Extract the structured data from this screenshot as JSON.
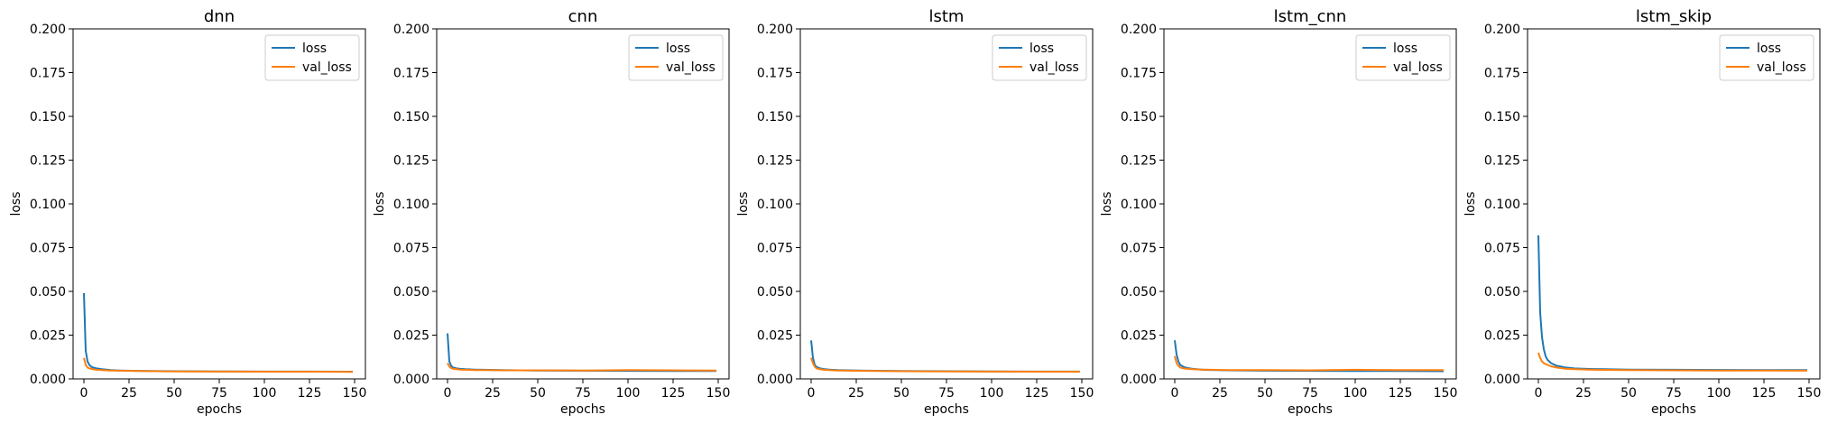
{
  "chart_data": [
    {
      "type": "line",
      "title": "dnn",
      "xlabel": "epochs",
      "ylabel": "loss",
      "xlim": [
        -6,
        156
      ],
      "ylim": [
        0,
        0.2
      ],
      "xticks": [
        "0",
        "25",
        "50",
        "75",
        "100",
        "125",
        "150"
      ],
      "yticks": [
        "0.000",
        "0.025",
        "0.050",
        "0.075",
        "0.100",
        "0.125",
        "0.150",
        "0.175",
        "0.200"
      ],
      "legend_position": "top-right",
      "grid": false,
      "series": [
        {
          "name": "loss",
          "color": "#1f77b4",
          "x": [
            0,
            1,
            2,
            3,
            4,
            5,
            7,
            10,
            15,
            20,
            30,
            50,
            75,
            100,
            125,
            149
          ],
          "y": [
            0.049,
            0.016,
            0.01,
            0.008,
            0.007,
            0.0065,
            0.006,
            0.0055,
            0.005,
            0.0048,
            0.0046,
            0.0044,
            0.0043,
            0.0042,
            0.0042,
            0.0041
          ]
        },
        {
          "name": "val_loss",
          "color": "#ff7f0e",
          "x": [
            0,
            1,
            2,
            3,
            5,
            7,
            10,
            15,
            20,
            30,
            50,
            75,
            100,
            125,
            149
          ],
          "y": [
            0.012,
            0.008,
            0.0065,
            0.006,
            0.0055,
            0.0052,
            0.005,
            0.0048,
            0.0047,
            0.0045,
            0.0043,
            0.0042,
            0.0041,
            0.0041,
            0.004
          ]
        }
      ]
    },
    {
      "type": "line",
      "title": "cnn",
      "xlabel": "epochs",
      "ylabel": "loss",
      "xlim": [
        -6,
        156
      ],
      "ylim": [
        0,
        0.2
      ],
      "xticks": [
        "0",
        "25",
        "50",
        "75",
        "100",
        "125",
        "150"
      ],
      "yticks": [
        "0.000",
        "0.025",
        "0.050",
        "0.075",
        "0.100",
        "0.125",
        "0.150",
        "0.175",
        "0.200"
      ],
      "legend_position": "top-right",
      "grid": false,
      "series": [
        {
          "name": "loss",
          "color": "#1f77b4",
          "x": [
            0,
            1,
            2,
            3,
            5,
            7,
            10,
            15,
            20,
            30,
            50,
            75,
            100,
            125,
            149
          ],
          "y": [
            0.026,
            0.01,
            0.0075,
            0.0065,
            0.006,
            0.0057,
            0.0055,
            0.0053,
            0.0052,
            0.005,
            0.0048,
            0.0047,
            0.0046,
            0.0045,
            0.0045
          ]
        },
        {
          "name": "val_loss",
          "color": "#ff7f0e",
          "x": [
            0,
            1,
            2,
            3,
            5,
            7,
            10,
            15,
            20,
            30,
            50,
            75,
            100,
            125,
            149
          ],
          "y": [
            0.009,
            0.007,
            0.0062,
            0.0058,
            0.0055,
            0.0053,
            0.0052,
            0.005,
            0.005,
            0.0049,
            0.0049,
            0.0048,
            0.005,
            0.0049,
            0.0048
          ]
        }
      ]
    },
    {
      "type": "line",
      "title": "lstm",
      "xlabel": "epochs",
      "ylabel": "loss",
      "xlim": [
        -6,
        156
      ],
      "ylim": [
        0,
        0.2
      ],
      "xticks": [
        "0",
        "25",
        "50",
        "75",
        "100",
        "125",
        "150"
      ],
      "yticks": [
        "0.000",
        "0.025",
        "0.050",
        "0.075",
        "0.100",
        "0.125",
        "0.150",
        "0.175",
        "0.200"
      ],
      "legend_position": "top-right",
      "grid": false,
      "series": [
        {
          "name": "loss",
          "color": "#1f77b4",
          "x": [
            0,
            1,
            2,
            3,
            5,
            7,
            10,
            15,
            20,
            30,
            50,
            75,
            100,
            125,
            149
          ],
          "y": [
            0.022,
            0.012,
            0.008,
            0.0068,
            0.006,
            0.0056,
            0.0053,
            0.005,
            0.0049,
            0.0047,
            0.0045,
            0.0044,
            0.0043,
            0.0042,
            0.0042
          ]
        },
        {
          "name": "val_loss",
          "color": "#ff7f0e",
          "x": [
            0,
            1,
            2,
            3,
            5,
            7,
            10,
            15,
            20,
            30,
            50,
            75,
            100,
            125,
            149
          ],
          "y": [
            0.012,
            0.009,
            0.007,
            0.006,
            0.0055,
            0.0052,
            0.005,
            0.0048,
            0.0047,
            0.0046,
            0.0044,
            0.0043,
            0.0042,
            0.0041,
            0.0041
          ]
        }
      ]
    },
    {
      "type": "line",
      "title": "lstm_cnn",
      "xlabel": "epochs",
      "ylabel": "loss",
      "xlim": [
        -6,
        156
      ],
      "ylim": [
        0,
        0.2
      ],
      "xticks": [
        "0",
        "25",
        "50",
        "75",
        "100",
        "125",
        "150"
      ],
      "yticks": [
        "0.000",
        "0.025",
        "0.050",
        "0.075",
        "0.100",
        "0.125",
        "0.150",
        "0.175",
        "0.200"
      ],
      "legend_position": "top-right",
      "grid": false,
      "series": [
        {
          "name": "loss",
          "color": "#1f77b4",
          "x": [
            0,
            1,
            2,
            3,
            5,
            7,
            10,
            15,
            20,
            30,
            50,
            75,
            100,
            125,
            149
          ],
          "y": [
            0.022,
            0.014,
            0.01,
            0.008,
            0.0068,
            0.0062,
            0.0057,
            0.0053,
            0.0051,
            0.0049,
            0.0047,
            0.0046,
            0.0045,
            0.0045,
            0.0044
          ]
        },
        {
          "name": "val_loss",
          "color": "#ff7f0e",
          "x": [
            0,
            1,
            2,
            3,
            5,
            7,
            10,
            15,
            20,
            30,
            50,
            75,
            100,
            125,
            149
          ],
          "y": [
            0.013,
            0.009,
            0.0075,
            0.0065,
            0.006,
            0.0057,
            0.0055,
            0.0053,
            0.0052,
            0.005,
            0.005,
            0.0049,
            0.0052,
            0.005,
            0.005
          ]
        }
      ]
    },
    {
      "type": "line",
      "title": "lstm_skip",
      "xlabel": "epochs",
      "ylabel": "loss",
      "xlim": [
        -6,
        156
      ],
      "ylim": [
        0,
        0.2
      ],
      "xticks": [
        "0",
        "25",
        "50",
        "75",
        "100",
        "125",
        "150"
      ],
      "yticks": [
        "0.000",
        "0.025",
        "0.050",
        "0.075",
        "0.100",
        "0.125",
        "0.150",
        "0.175",
        "0.200"
      ],
      "legend_position": "top-right",
      "grid": false,
      "series": [
        {
          "name": "loss",
          "color": "#1f77b4",
          "x": [
            0,
            1,
            2,
            3,
            4,
            5,
            7,
            10,
            15,
            20,
            30,
            50,
            75,
            100,
            125,
            149
          ],
          "y": [
            0.082,
            0.038,
            0.024,
            0.017,
            0.013,
            0.011,
            0.009,
            0.0075,
            0.0065,
            0.006,
            0.0056,
            0.0053,
            0.0052,
            0.0051,
            0.005,
            0.005
          ]
        },
        {
          "name": "val_loss",
          "color": "#ff7f0e",
          "x": [
            0,
            1,
            2,
            3,
            5,
            7,
            10,
            15,
            20,
            30,
            50,
            75,
            100,
            125,
            149
          ],
          "y": [
            0.015,
            0.012,
            0.01,
            0.009,
            0.008,
            0.0072,
            0.0065,
            0.0058,
            0.0055,
            0.0052,
            0.005,
            0.0049,
            0.0048,
            0.0048,
            0.0047
          ]
        }
      ]
    }
  ]
}
